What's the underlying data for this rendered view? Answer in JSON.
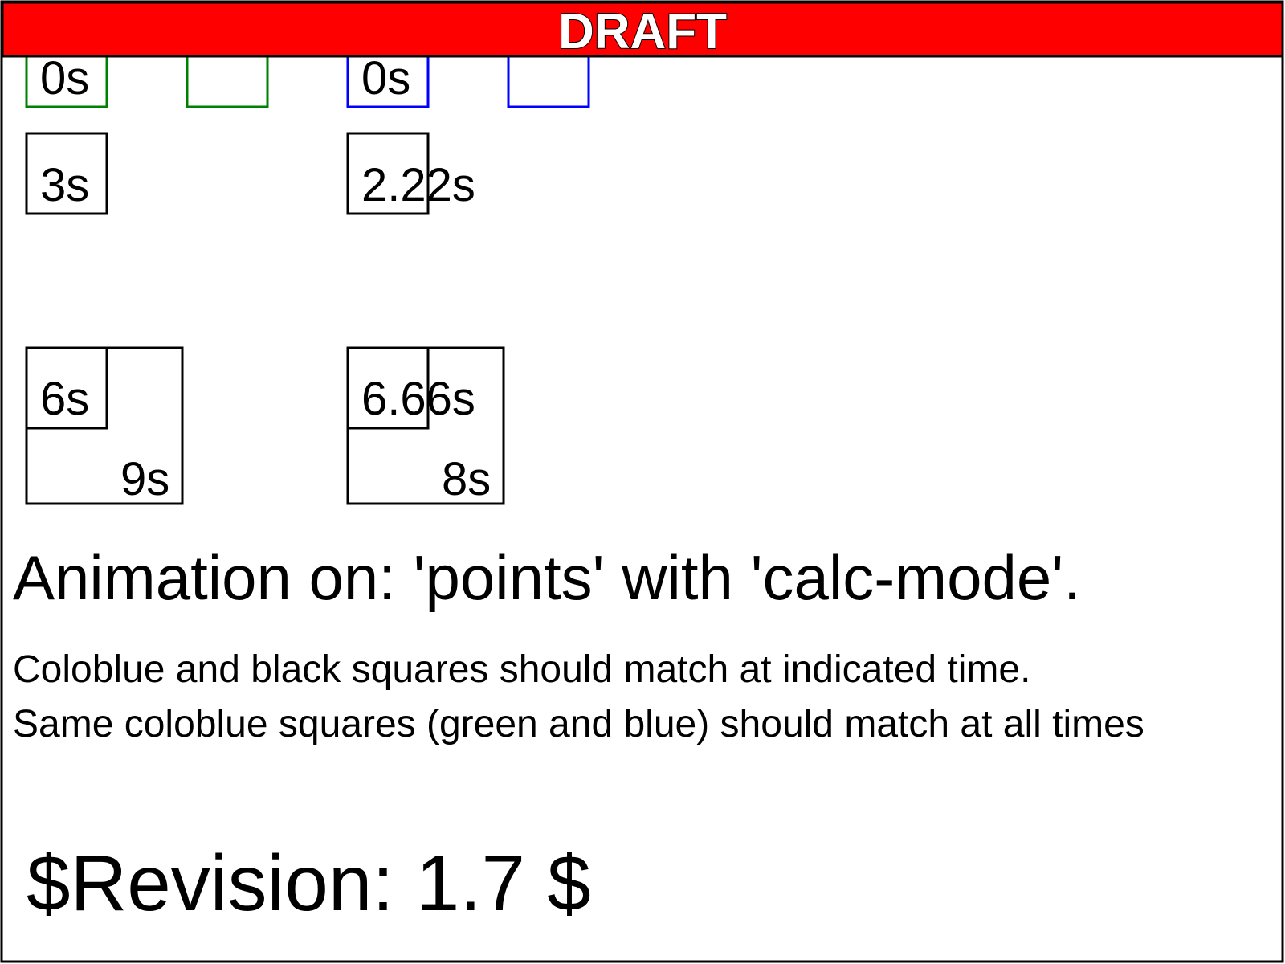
{
  "banner": {
    "text": "DRAFT",
    "background_color": "#ff0000"
  },
  "colors": {
    "green": "#008000",
    "blue": "#0000ff",
    "black": "#000000"
  },
  "group_a": {
    "label_0s": "0s",
    "label_3s": "3s",
    "label_6s": "6s",
    "label_9s": "9s"
  },
  "group_b": {
    "label_0s": "0s",
    "label_222s": "2.22s",
    "label_666s": "6.66s",
    "label_8s": "8s"
  },
  "heading": "Animation on: 'points' with 'calc-mode'.",
  "description": {
    "line1": "Coloblue and black squares should match at indicated time.",
    "line2": "Same coloblue squares (green and blue) should match at all times"
  },
  "revision": "$Revision: 1.7 $"
}
